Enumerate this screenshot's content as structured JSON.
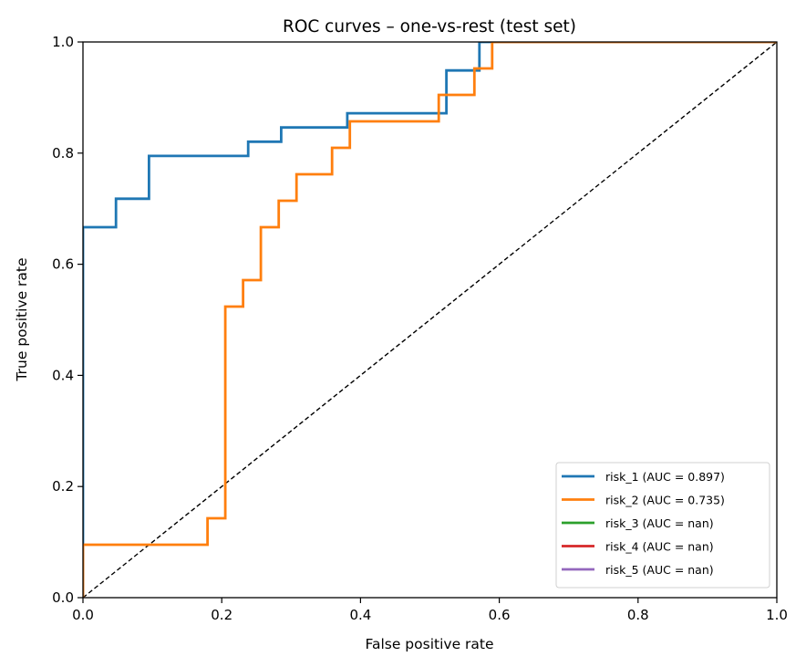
{
  "chart_data": {
    "type": "line",
    "title": "ROC curves – one-vs-rest (test set)",
    "xlabel": "False positive rate",
    "ylabel": "True positive rate",
    "xlim": [
      0.0,
      1.0
    ],
    "ylim": [
      0.0,
      1.0
    ],
    "xticks": [
      "0.0",
      "0.2",
      "0.4",
      "0.6",
      "0.8",
      "1.0"
    ],
    "yticks": [
      "0.0",
      "0.2",
      "0.4",
      "0.6",
      "0.8",
      "1.0"
    ],
    "grid": false,
    "legend_position": "lower-right",
    "series": [
      {
        "name": "risk_1 (AUC = 0.897)",
        "color": "#1f77b4",
        "x": [
          0.0,
          0.0,
          0.0476,
          0.0476,
          0.0952,
          0.0952,
          0.2381,
          0.2381,
          0.2857,
          0.2857,
          0.381,
          0.381,
          0.5238,
          0.5238,
          0.5714,
          0.5714,
          1.0
        ],
        "y": [
          0.0,
          0.6667,
          0.6667,
          0.7179,
          0.7179,
          0.7949,
          0.7949,
          0.8205,
          0.8205,
          0.8462,
          0.8462,
          0.8718,
          0.8718,
          0.9487,
          0.9487,
          1.0,
          1.0
        ]
      },
      {
        "name": "risk_2 (AUC = 0.735)",
        "color": "#ff7f0e",
        "x": [
          0.0,
          0.0,
          0.1795,
          0.1795,
          0.2051,
          0.2051,
          0.2308,
          0.2308,
          0.2564,
          0.2564,
          0.2821,
          0.2821,
          0.3077,
          0.3077,
          0.359,
          0.359,
          0.3846,
          0.3846,
          0.5128,
          0.5128,
          0.5641,
          0.5641,
          0.5897,
          0.5897,
          1.0
        ],
        "y": [
          0.0,
          0.0952,
          0.0952,
          0.1429,
          0.1429,
          0.5238,
          0.5238,
          0.5714,
          0.5714,
          0.6667,
          0.6667,
          0.7143,
          0.7143,
          0.7619,
          0.7619,
          0.8095,
          0.8095,
          0.8571,
          0.8571,
          0.9048,
          0.9048,
          0.9524,
          0.9524,
          1.0,
          1.0
        ]
      },
      {
        "name": "risk_3 (AUC = nan)",
        "color": "#2ca02c",
        "x": [],
        "y": []
      },
      {
        "name": "risk_4 (AUC = nan)",
        "color": "#d62728",
        "x": [],
        "y": []
      },
      {
        "name": "risk_5 (AUC = nan)",
        "color": "#9467bd",
        "x": [],
        "y": []
      }
    ],
    "reference_line": {
      "name": "chance",
      "x": [
        0,
        1
      ],
      "y": [
        0,
        1
      ],
      "color": "#000000",
      "style": "dashed"
    }
  }
}
